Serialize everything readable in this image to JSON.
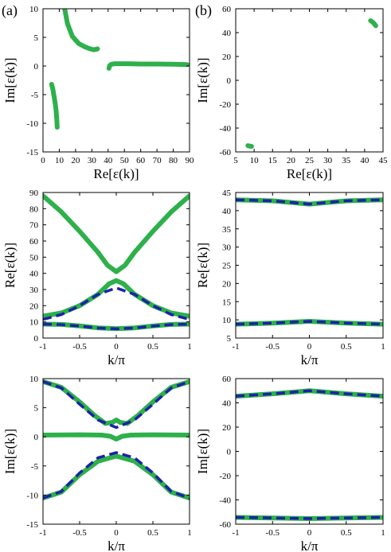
{
  "figure": {
    "panel_labels": [
      "(a)",
      "(b)"
    ]
  },
  "colors": {
    "green": "#2eb04b",
    "blue": "#1c22a8"
  },
  "chart_data": [
    {
      "id": "a-top",
      "type": "scatter",
      "xlabel": "Re[ε(k)]",
      "ylabel": "Im[ε(k)]",
      "xlim": [
        0,
        90
      ],
      "ylim": [
        -15,
        10
      ],
      "xticks": [
        0,
        10,
        20,
        30,
        40,
        50,
        60,
        70,
        80,
        90
      ],
      "yticks": [
        -15,
        -10,
        -5,
        0,
        5,
        10
      ],
      "series": [
        {
          "style": "thick-green",
          "x": [
            13.3,
            15,
            18,
            22,
            26,
            29,
            31,
            32.5,
            33.5
          ],
          "y": [
            10,
            7.4,
            5.2,
            3.9,
            3.3,
            3.0,
            2.85,
            2.9,
            3.0
          ]
        },
        {
          "style": "thick-green",
          "x": [
            40.5,
            41,
            42,
            44,
            47,
            52,
            60,
            70,
            80,
            88.5
          ],
          "y": [
            -0.4,
            0.1,
            0.3,
            0.4,
            0.4,
            0.4,
            0.35,
            0.35,
            0.3,
            0.25
          ]
        },
        {
          "style": "thick-green",
          "x": [
            5.3,
            6,
            6.8,
            7.5,
            8,
            8.5,
            8.7
          ],
          "y": [
            -3.2,
            -4,
            -5.3,
            -6.5,
            -7.7,
            -9.5,
            -10.7
          ]
        }
      ]
    },
    {
      "id": "b-top",
      "type": "scatter",
      "xlabel": "Re[ε(k)]",
      "ylabel": "Im[ε(k)]",
      "xlim": [
        5,
        45
      ],
      "ylim": [
        -60,
        60
      ],
      "xticks": [
        5,
        10,
        15,
        20,
        25,
        30,
        35,
        40,
        45
      ],
      "yticks": [
        -60,
        -40,
        -20,
        0,
        20,
        40,
        60
      ],
      "series": [
        {
          "style": "thick-green",
          "x": [
            41.6,
            42.1,
            42.6,
            43
          ],
          "y": [
            50,
            49,
            47.5,
            45.8
          ]
        },
        {
          "style": "thick-green",
          "x": [
            8.3,
            8.8,
            9.3
          ],
          "y": [
            -54.7,
            -55.1,
            -55.4
          ]
        }
      ]
    },
    {
      "id": "a-mid",
      "type": "line",
      "xlabel": "k/π",
      "ylabel": "Re[ε(k)]",
      "xlim": [
        -1,
        1
      ],
      "ylim": [
        0,
        90
      ],
      "xticks": [
        -1,
        -0.5,
        0,
        0.5,
        1
      ],
      "yticks": [
        0,
        10,
        20,
        30,
        40,
        50,
        60,
        70,
        80,
        90
      ],
      "series": [
        {
          "style": "thick-green",
          "x": [
            -1,
            -0.75,
            -0.5,
            -0.25,
            -0.12,
            0,
            0.12,
            0.25,
            0.5,
            0.75,
            1
          ],
          "y": [
            88,
            78,
            66,
            53,
            45,
            41,
            45,
            53,
            66,
            78,
            88
          ]
        },
        {
          "style": "thick-green",
          "x": [
            -1,
            -0.75,
            -0.5,
            -0.25,
            -0.1,
            0,
            0.1,
            0.25,
            0.5,
            0.75,
            1
          ],
          "y": [
            13.5,
            15.5,
            20,
            27,
            33.5,
            35.5,
            33.5,
            27,
            20,
            15.5,
            13.5
          ]
        },
        {
          "style": "thick-green",
          "x": [
            -1,
            -0.75,
            -0.5,
            -0.25,
            0,
            0.25,
            0.5,
            0.75,
            1
          ],
          "y": [
            8.6,
            8.4,
            7.5,
            6.3,
            5.8,
            6.3,
            7.5,
            8.4,
            8.6
          ]
        },
        {
          "style": "dashed-blue",
          "x": [
            -1,
            -0.75,
            -0.5,
            -0.25,
            0,
            0.25,
            0.5,
            0.75,
            1
          ],
          "y": [
            11.5,
            14.5,
            20,
            27,
            31,
            27,
            20,
            14.5,
            11.5
          ]
        },
        {
          "style": "dashed-blue",
          "x": [
            -1,
            -0.75,
            -0.5,
            -0.25,
            0,
            0.25,
            0.5,
            0.75,
            1
          ],
          "y": [
            8.6,
            8.3,
            7.4,
            6.2,
            5.7,
            6.2,
            7.4,
            8.3,
            8.6
          ]
        }
      ]
    },
    {
      "id": "b-mid",
      "type": "line",
      "xlabel": "k/π",
      "ylabel": "Re[ε(k)]",
      "xlim": [
        -1,
        1
      ],
      "ylim": [
        5,
        45
      ],
      "xticks": [
        -1,
        -0.5,
        0,
        0.5,
        1
      ],
      "yticks": [
        5,
        10,
        15,
        20,
        25,
        30,
        35,
        40,
        45
      ],
      "series": [
        {
          "style": "thick-green",
          "x": [
            -1,
            -0.5,
            0,
            0.5,
            1
          ],
          "y": [
            43,
            42.7,
            41.8,
            42.7,
            43
          ]
        },
        {
          "style": "thick-green",
          "x": [
            -1,
            -0.5,
            0,
            0.5,
            1
          ],
          "y": [
            8.8,
            9.1,
            9.6,
            9.1,
            8.8
          ]
        },
        {
          "style": "dashed-blue",
          "x": [
            -1,
            -0.5,
            0,
            0.5,
            1
          ],
          "y": [
            43,
            42.7,
            41.8,
            42.7,
            43
          ]
        },
        {
          "style": "dashed-blue",
          "x": [
            -1,
            -0.5,
            0,
            0.5,
            1
          ],
          "y": [
            8.8,
            9.1,
            9.6,
            9.1,
            8.8
          ]
        }
      ]
    },
    {
      "id": "a-bot",
      "type": "line",
      "xlabel": "k/π",
      "ylabel": "Im[ε(k)]",
      "xlim": [
        -1,
        1
      ],
      "ylim": [
        -15,
        10
      ],
      "xticks": [
        -1,
        -0.5,
        0,
        0.5,
        1
      ],
      "yticks": [
        -15,
        -10,
        -5,
        0,
        5,
        10
      ],
      "series": [
        {
          "style": "thick-green",
          "x": [
            -1,
            -0.75,
            -0.5,
            -0.3,
            -0.15,
            -0.05,
            0,
            0.05,
            0.15,
            0.3,
            0.5,
            0.75,
            1
          ],
          "y": [
            9.5,
            8.5,
            6,
            3.7,
            2.3,
            2.5,
            2.9,
            2.5,
            2.3,
            3.7,
            6,
            8.5,
            9.5
          ]
        },
        {
          "style": "thick-green",
          "x": [
            -1,
            -0.5,
            -0.2,
            -0.08,
            0,
            0.08,
            0.2,
            0.5,
            1
          ],
          "y": [
            0.3,
            0.35,
            0.3,
            0.1,
            -0.4,
            0.1,
            0.3,
            0.35,
            0.3
          ]
        },
        {
          "style": "thick-green",
          "x": [
            -1,
            -0.75,
            -0.5,
            -0.25,
            0,
            0.25,
            0.5,
            0.75,
            1
          ],
          "y": [
            -10.5,
            -9.5,
            -6.5,
            -4.2,
            -3.3,
            -4.2,
            -6.5,
            -9.5,
            -10.5
          ]
        },
        {
          "style": "dashed-blue",
          "x": [
            -1,
            -0.75,
            -0.5,
            -0.25,
            0,
            0.25,
            0.5,
            0.75,
            1
          ],
          "y": [
            9.5,
            8.4,
            5.6,
            2.9,
            1.6,
            2.9,
            5.6,
            8.4,
            9.5
          ]
        },
        {
          "style": "dashed-blue",
          "x": [
            -1,
            -0.75,
            -0.5,
            -0.25,
            0,
            0.25,
            0.5,
            0.75,
            1
          ],
          "y": [
            -10.5,
            -9.4,
            -6.2,
            -3.6,
            -2.7,
            -3.6,
            -6.2,
            -9.4,
            -10.5
          ]
        }
      ]
    },
    {
      "id": "b-bot",
      "type": "line",
      "xlabel": "k/π",
      "ylabel": "Im[ε(k)]",
      "xlim": [
        -1,
        1
      ],
      "ylim": [
        -60,
        60
      ],
      "xticks": [
        -1,
        -0.5,
        0,
        0.5,
        1
      ],
      "yticks": [
        -60,
        -40,
        -20,
        0,
        20,
        40,
        60
      ],
      "series": [
        {
          "style": "thick-green",
          "x": [
            -1,
            -0.5,
            0,
            0.5,
            1
          ],
          "y": [
            45.5,
            47.5,
            50,
            47.5,
            45.5
          ]
        },
        {
          "style": "thick-green",
          "x": [
            -1,
            -0.5,
            0,
            0.5,
            1
          ],
          "y": [
            -54.4,
            -54.9,
            -55.4,
            -54.9,
            -54.4
          ]
        },
        {
          "style": "dashed-blue",
          "x": [
            -1,
            -0.5,
            0,
            0.5,
            1
          ],
          "y": [
            45.5,
            47.5,
            50,
            47.5,
            45.5
          ]
        },
        {
          "style": "dashed-blue",
          "x": [
            -1,
            -0.5,
            0,
            0.5,
            1
          ],
          "y": [
            -54.4,
            -54.9,
            -55.4,
            -54.9,
            -54.4
          ]
        }
      ]
    }
  ]
}
